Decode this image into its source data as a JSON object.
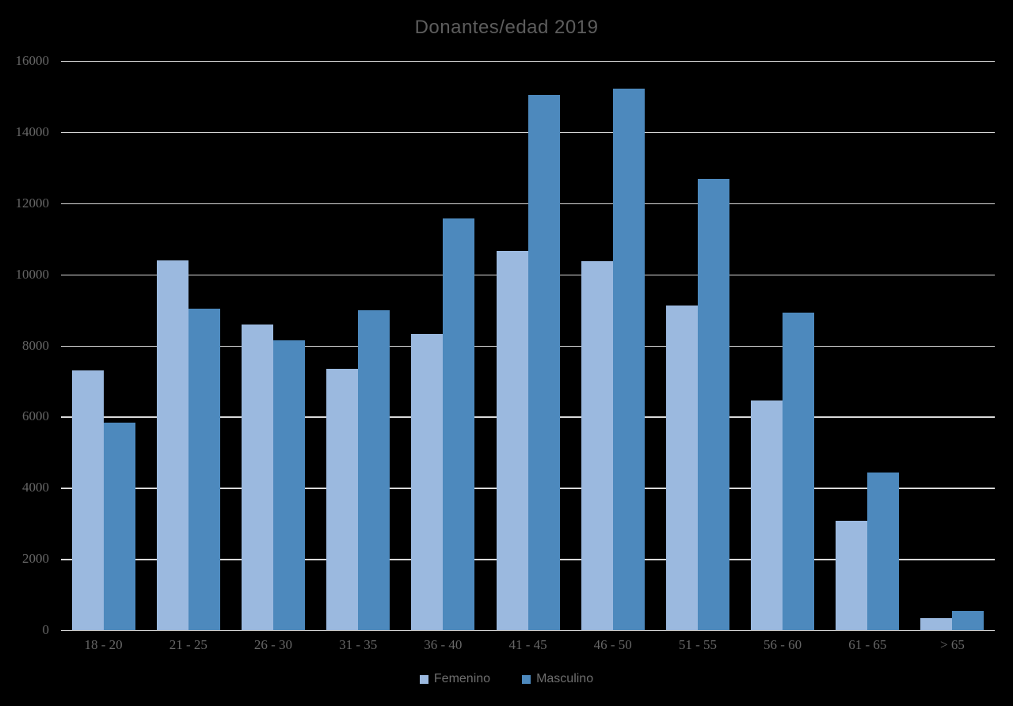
{
  "title": "Donantes/edad 2019",
  "colors": {
    "background": "#000000",
    "gridline": "#d9d9d9",
    "title_text": "#5d5d5d",
    "tick_text": "#666666",
    "legend_text": "#6e6e6e",
    "series_femenino": "#9BB9DF",
    "series_masculino": "#4D89BD"
  },
  "legend": {
    "items": [
      {
        "label": "Femenino",
        "color": "#9BB9DF"
      },
      {
        "label": "Masculino",
        "color": "#4D89BD"
      }
    ]
  },
  "chart_data": {
    "type": "bar",
    "title": "Donantes/edad 2019",
    "categories": [
      "18 - 20",
      "21 - 25",
      "26 - 30",
      "31 - 35",
      "36 - 40",
      "41 - 45",
      "46 - 50",
      "51 - 55",
      "56 - 60",
      "61 - 65",
      "> 65"
    ],
    "series": [
      {
        "name": "Femenino",
        "color": "#9BB9DF",
        "values": [
          7300,
          10400,
          8600,
          7350,
          8330,
          10650,
          10380,
          9120,
          6450,
          3080,
          330
        ]
      },
      {
        "name": "Masculino",
        "color": "#4D89BD",
        "values": [
          5820,
          9030,
          8140,
          8990,
          11570,
          15040,
          15220,
          12680,
          8920,
          4430,
          530
        ]
      }
    ],
    "xlabel": "",
    "ylabel": "",
    "ylim": [
      0,
      16000
    ],
    "ytick_step": 2000,
    "yticks": [
      0,
      2000,
      4000,
      6000,
      8000,
      10000,
      12000,
      14000,
      16000
    ],
    "grid": true,
    "legend_position": "bottom"
  }
}
